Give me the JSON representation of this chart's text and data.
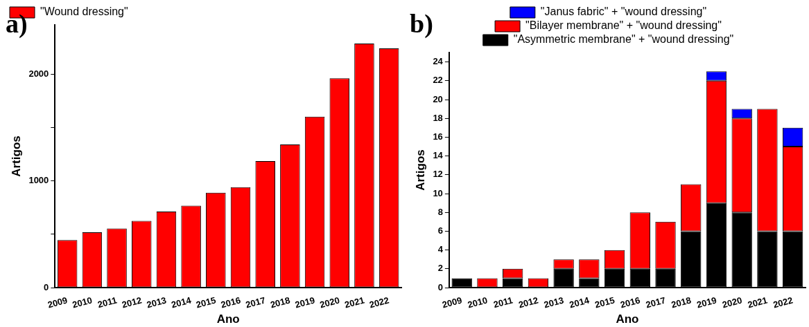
{
  "chart_data": [
    {
      "type": "bar",
      "title": "a)",
      "xlabel": "Ano",
      "ylabel": "Artigos",
      "categories": [
        "2009",
        "2010",
        "2011",
        "2012",
        "2013",
        "2014",
        "2015",
        "2016",
        "2017",
        "2018",
        "2019",
        "2020",
        "2021",
        "2022"
      ],
      "series": [
        {
          "name": "\"Wound dressing\"",
          "color": "#ff0000",
          "values": [
            445,
            518,
            553,
            625,
            713,
            768,
            888,
            940,
            1185,
            1340,
            1600,
            1960,
            2285,
            2240
          ]
        }
      ],
      "ylim": [
        0,
        2460
      ],
      "yticks": [
        0,
        {
          "value": 500,
          "label": null
        },
        1000,
        {
          "value": 1500,
          "label": null
        },
        2000
      ],
      "grid": false,
      "legend": "top left"
    },
    {
      "type": "bar",
      "title": "b)",
      "xlabel": "Ano",
      "ylabel": "Artigos",
      "stacked": true,
      "categories": [
        "2009",
        "2010",
        "2011",
        "2012",
        "2013",
        "2014",
        "2015",
        "2016",
        "2017",
        "2018",
        "2019",
        "2020",
        "2021",
        "2022"
      ],
      "series": [
        {
          "name": "\"Asymmetric membrane\" + \"wound dressing\"",
          "color": "#000000",
          "values": [
            1,
            0,
            1,
            0,
            2,
            1,
            2,
            2,
            2,
            6,
            9,
            8,
            6,
            6
          ]
        },
        {
          "name": "\"Bilayer membrane\" + \"wound dressing\"",
          "color": "#ff0000",
          "values": [
            0,
            1,
            1,
            1,
            1,
            2,
            2,
            6,
            5,
            5,
            13,
            10,
            13,
            9
          ]
        },
        {
          "name": "\"Janus fabric\" + \"wound dressing\"",
          "color": "#0000ff",
          "values": [
            0,
            0,
            0,
            0,
            0,
            0,
            0,
            0,
            0,
            0,
            1,
            1,
            0,
            2
          ]
        }
      ],
      "ylim": [
        0,
        25
      ],
      "yticks": [
        0,
        2,
        4,
        6,
        8,
        10,
        12,
        14,
        16,
        18,
        20,
        22,
        24
      ],
      "grid": false,
      "legend": "top"
    }
  ]
}
